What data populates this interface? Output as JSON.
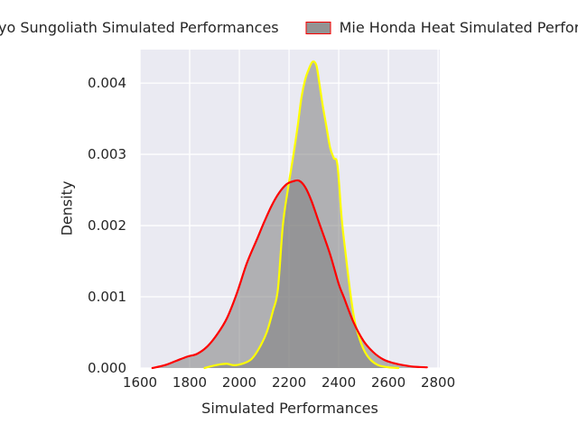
{
  "figure": {
    "background": "#ffffff",
    "plot_background": "#eaeaf2",
    "grid_color": "#ffffff",
    "text_color": "#262626"
  },
  "legend": {
    "items": [
      {
        "label": "Tokyo Sungoliath Simulated Performances",
        "fill": "rgba(128,128,128,0.85)",
        "edge": "#ffff00"
      },
      {
        "label": "Mie Honda Heat Simulated Performances",
        "fill": "rgba(128,128,128,0.85)",
        "edge": "#ff0000"
      }
    ]
  },
  "axes": {
    "xlabel": "Simulated Performances",
    "ylabel": "Density",
    "xlim": [
      1600,
      2807
    ],
    "ylim": [
      0,
      0.00447
    ],
    "x_ticks": [
      {
        "label": "1600",
        "value": 1600
      },
      {
        "label": "1800",
        "value": 1800
      },
      {
        "label": "2000",
        "value": 2000
      },
      {
        "label": "2200",
        "value": 2200
      },
      {
        "label": "2400",
        "value": 2400
      },
      {
        "label": "2600",
        "value": 2600
      },
      {
        "label": "2800",
        "value": 2800
      }
    ],
    "y_ticks": [
      {
        "label": "0.000",
        "value": 0.0
      },
      {
        "label": "0.001",
        "value": 0.001
      },
      {
        "label": "0.002",
        "value": 0.002
      },
      {
        "label": "0.003",
        "value": 0.003
      },
      {
        "label": "0.004",
        "value": 0.004
      }
    ],
    "grid": true
  },
  "chart_data": {
    "type": "area",
    "subtype": "kde-density",
    "title": "",
    "xlabel": "Simulated Performances",
    "ylabel": "Density",
    "xlim": [
      1600,
      2807
    ],
    "ylim": [
      0,
      0.00447
    ],
    "legend_position": "top-center",
    "series": [
      {
        "name": "Tokyo Sungoliath Simulated Performances",
        "line_color": "#ffff00",
        "fill_color": "rgba(128,128,128,0.55)",
        "peak": {
          "x": 2295,
          "density": 0.0043
        },
        "points": [
          [
            1860,
            0.0
          ],
          [
            1880,
            2e-05
          ],
          [
            1920,
            5e-05
          ],
          [
            1950,
            6e-05
          ],
          [
            1980,
            4e-05
          ],
          [
            2020,
            7e-05
          ],
          [
            2050,
            0.00013
          ],
          [
            2080,
            0.00028
          ],
          [
            2110,
            0.0005
          ],
          [
            2135,
            0.0008
          ],
          [
            2155,
            0.0011
          ],
          [
            2175,
            0.002
          ],
          [
            2195,
            0.0025
          ],
          [
            2218,
            0.003
          ],
          [
            2235,
            0.0034
          ],
          [
            2250,
            0.0038
          ],
          [
            2265,
            0.00405
          ],
          [
            2280,
            0.0042
          ],
          [
            2295,
            0.0043
          ],
          [
            2310,
            0.00425
          ],
          [
            2322,
            0.004
          ],
          [
            2335,
            0.0037
          ],
          [
            2350,
            0.0034
          ],
          [
            2365,
            0.0031
          ],
          [
            2380,
            0.00295
          ],
          [
            2395,
            0.00285
          ],
          [
            2412,
            0.0021
          ],
          [
            2428,
            0.0016
          ],
          [
            2447,
            0.00105
          ],
          [
            2465,
            0.00065
          ],
          [
            2485,
            0.0004
          ],
          [
            2505,
            0.00023
          ],
          [
            2530,
            0.00011
          ],
          [
            2560,
            4e-05
          ],
          [
            2600,
            1e-05
          ],
          [
            2640,
            0.0
          ]
        ]
      },
      {
        "name": "Mie Honda Heat Simulated Performances",
        "line_color": "#ff0000",
        "fill_color": "rgba(128,128,128,0.55)",
        "peak": {
          "x": 2230,
          "density": 0.00263
        },
        "points": [
          [
            1650,
            0.0
          ],
          [
            1700,
            4e-05
          ],
          [
            1745,
            0.0001
          ],
          [
            1790,
            0.00016
          ],
          [
            1830,
            0.0002
          ],
          [
            1870,
            0.0003
          ],
          [
            1910,
            0.00047
          ],
          [
            1950,
            0.0007
          ],
          [
            1990,
            0.00105
          ],
          [
            2030,
            0.00147
          ],
          [
            2070,
            0.0018
          ],
          [
            2100,
            0.00205
          ],
          [
            2130,
            0.00228
          ],
          [
            2160,
            0.00246
          ],
          [
            2190,
            0.00258
          ],
          [
            2215,
            0.00262
          ],
          [
            2240,
            0.00263
          ],
          [
            2265,
            0.00254
          ],
          [
            2290,
            0.00235
          ],
          [
            2320,
            0.00205
          ],
          [
            2365,
            0.0016
          ],
          [
            2400,
            0.00118
          ],
          [
            2420,
            0.001
          ],
          [
            2460,
            0.00064
          ],
          [
            2500,
            0.00038
          ],
          [
            2540,
            0.00022
          ],
          [
            2580,
            0.00012
          ],
          [
            2620,
            7e-05
          ],
          [
            2660,
            4e-05
          ],
          [
            2700,
            2e-05
          ],
          [
            2755,
            1e-05
          ]
        ]
      }
    ]
  }
}
